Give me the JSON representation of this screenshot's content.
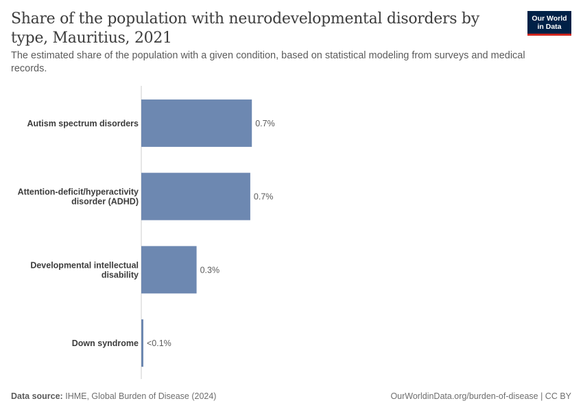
{
  "header": {
    "title": "Share of the population with neurodevelopmental disorders by type, Mauritius, 2021",
    "subtitle": "The estimated share of the population with a given condition, based on statistical modeling from surveys and medical records.",
    "logo_line1": "Our World",
    "logo_line2": "in Data"
  },
  "footer": {
    "source_label": "Data source:",
    "source_text": "IHME, Global Burden of Disease (2024)",
    "url_text": "OurWorldinData.org/burden-of-disease | CC BY"
  },
  "colors": {
    "bar": "#6d88b1",
    "axis": "#cccccc",
    "label": "#3c3c3c",
    "value_label": "#5b5b5b",
    "logo_bg": "#002147",
    "logo_accent": "#ce261e"
  },
  "chart_data": {
    "type": "bar",
    "orientation": "horizontal",
    "categories": [
      [
        "Autism spectrum disorders"
      ],
      [
        "Attention-deficit/hyperactivity",
        "disorder (ADHD)"
      ],
      [
        "Developmental intellectual",
        "disability"
      ],
      [
        "Down syndrome"
      ]
    ],
    "values": [
      0.7,
      0.69,
      0.35,
      0.012
    ],
    "value_labels": [
      "0.7%",
      "0.7%",
      "0.3%",
      "<0.1%"
    ],
    "unit": "%",
    "xlim": [
      0,
      1.65
    ],
    "grid": false
  }
}
